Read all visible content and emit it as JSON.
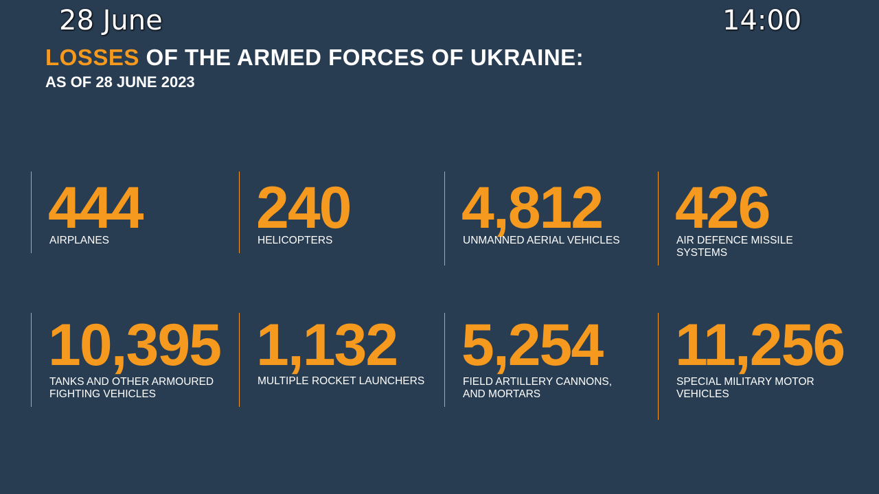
{
  "overlay": {
    "date": "28 June",
    "time": "14:00"
  },
  "header": {
    "title_accent": "LOSSES",
    "title_rest": " OF THE ARMED FORCES OF UKRAINE:",
    "subtitle": "AS OF 28 JUNE 2023"
  },
  "stats": [
    {
      "value": "444",
      "label_lines": [
        "AIRPLANES"
      ]
    },
    {
      "value": "240",
      "label_lines": [
        "HELICOPTERS"
      ]
    },
    {
      "value": "4,812",
      "label_lines": [
        "UNMANNED AERIAL VEHICLES"
      ]
    },
    {
      "value": "426",
      "label_lines": [
        "AIR DEFENCE MISSILE",
        "SYSTEMS"
      ]
    },
    {
      "value": "10,395",
      "label_lines": [
        "TANKS AND OTHER ARMOURED",
        "FIGHTING VEHICLES"
      ]
    },
    {
      "value": "1,132",
      "label_lines": [
        "MULTIPLE ROCKET LAUNCHERS"
      ]
    },
    {
      "value": "5,254",
      "label_lines": [
        "FIELD ARTILLERY CANNONS,",
        "AND MORTARS"
      ]
    },
    {
      "value": "11,256",
      "label_lines": [
        "SPECIAL MILITARY MOTOR",
        "VEHICLES"
      ]
    }
  ],
  "colors": {
    "background": "#283c52",
    "accent": "#f59a1e",
    "text": "#ffffff"
  }
}
